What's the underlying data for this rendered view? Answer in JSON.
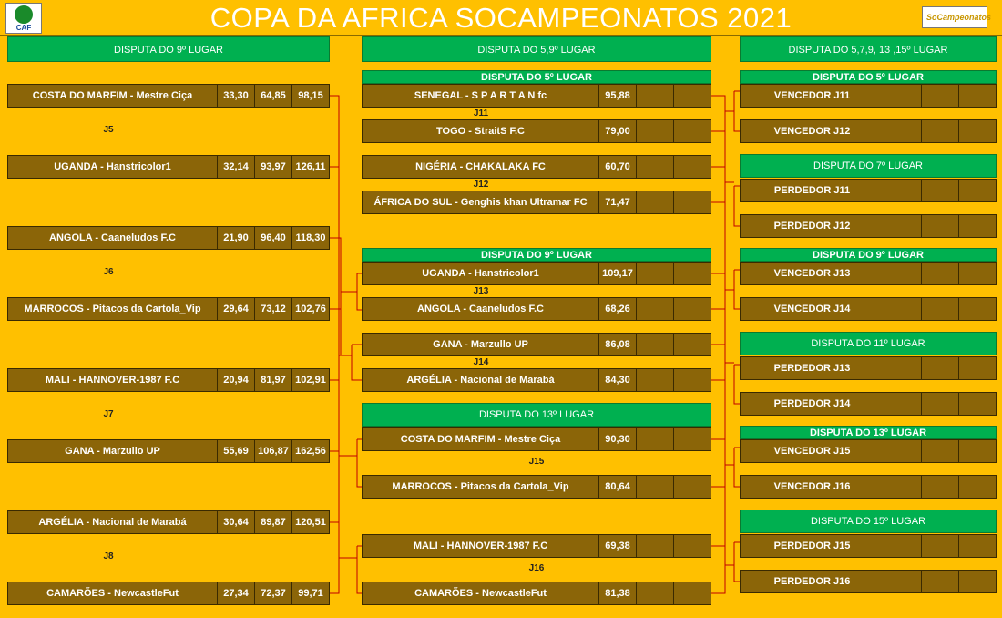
{
  "title": "COPA DA AFRICA SOCAMPEONATOS  2021",
  "logos": {
    "left_text": "CAF",
    "right_text": "SoCampeonatos"
  },
  "headers": {
    "col1": "DISPUTA DO 9º LUGAR",
    "col2": "DISPUTA DO 5,9º LUGAR",
    "col3": "DISPUTA DO 5,7,9, 13 ,15º LUGAR"
  },
  "col1_rows": [
    {
      "name": "COSTA DO MARFIM - Mestre Ciça",
      "v1": "33,30",
      "v2": "64,85",
      "v3": "98,15"
    },
    {
      "name": "UGANDA - Hanstricolor1",
      "v1": "32,14",
      "v2": "93,97",
      "v3": "126,11"
    },
    {
      "name": "ANGOLA - Caaneludos F.C",
      "v1": "21,90",
      "v2": "96,40",
      "v3": "118,30"
    },
    {
      "name": "MARROCOS - Pitacos da Cartola_Vip",
      "v1": "29,64",
      "v2": "73,12",
      "v3": "102,76"
    },
    {
      "name": "MALI - HANNOVER-1987 F.C",
      "v1": "20,94",
      "v2": "81,97",
      "v3": "102,91"
    },
    {
      "name": "GANA - Marzullo UP",
      "v1": "55,69",
      "v2": "106,87",
      "v3": "162,56"
    },
    {
      "name": "ARGÉLIA - Nacional de Marabá",
      "v1": "30,64",
      "v2": "89,87",
      "v3": "120,51"
    },
    {
      "name": "CAMARÕES - NewcastleFut",
      "v1": "27,34",
      "v2": "72,37",
      "v3": "99,71"
    }
  ],
  "col1_jlabels": [
    "J5",
    "J6",
    "J7",
    "J8"
  ],
  "col2_groups": [
    {
      "header": "DISPUTA DO 5º LUGAR"
    },
    {
      "header": "DISPUTA DO 9º LUGAR"
    },
    {
      "header": "DISPUTA DO 13º LUGAR"
    }
  ],
  "col2_rows": [
    {
      "name": "SENEGAL - S P A R T A N fc",
      "v1": "95,88"
    },
    {
      "name": "TOGO  - StraitS F.C",
      "v1": "79,00"
    },
    {
      "name": "NIGÉRIA - CHAKALAKA FC",
      "v1": "60,70"
    },
    {
      "name": "ÁFRICA DO SUL - Genghis khan Ultramar FC",
      "v1": "71,47"
    },
    {
      "name": "UGANDA - Hanstricolor1",
      "v1": "109,17"
    },
    {
      "name": "ANGOLA - Caaneludos F.C",
      "v1": "68,26"
    },
    {
      "name": "GANA - Marzullo UP",
      "v1": "86,08"
    },
    {
      "name": "ARGÉLIA - Nacional de Marabá",
      "v1": "84,30"
    },
    {
      "name": "COSTA DO MARFIM - Mestre Ciça",
      "v1": "90,30"
    },
    {
      "name": "MARROCOS - Pitacos da Cartola_Vip",
      "v1": "80,64"
    },
    {
      "name": "MALI - HANNOVER-1987 F.C",
      "v1": "69,38"
    },
    {
      "name": "CAMARÕES - NewcastleFut",
      "v1": "81,38"
    }
  ],
  "col2_jlabels": [
    "J11",
    "J12",
    "J13",
    "J14",
    "J15",
    "J16"
  ],
  "col3_groups": [
    {
      "header": "DISPUTA DO 5º LUGAR"
    },
    {
      "header": "DISPUTA DO 7º LUGAR"
    },
    {
      "header": "DISPUTA DO 9º LUGAR"
    },
    {
      "header": "DISPUTA DO 11º LUGAR"
    },
    {
      "header": "DISPUTA DO 13º LUGAR"
    },
    {
      "header": "DISPUTA DO 15º LUGAR"
    }
  ],
  "col3_rows": [
    {
      "name": "VENCEDOR J11"
    },
    {
      "name": "VENCEDOR J12"
    },
    {
      "name": "PERDEDOR J11"
    },
    {
      "name": "PERDEDOR J12"
    },
    {
      "name": "VENCEDOR J13"
    },
    {
      "name": "VENCEDOR J14"
    },
    {
      "name": "PERDEDOR J13"
    },
    {
      "name": "PERDEDOR J14"
    },
    {
      "name": "VENCEDOR J15"
    },
    {
      "name": "VENCEDOR J16"
    },
    {
      "name": "PERDEDOR J15"
    },
    {
      "name": "PERDEDOR J16"
    }
  ],
  "colors": {
    "background": "#ffc000",
    "header_green": "#00b050",
    "cell_brown": "#8b6508",
    "bracket_red": "#c00000"
  }
}
